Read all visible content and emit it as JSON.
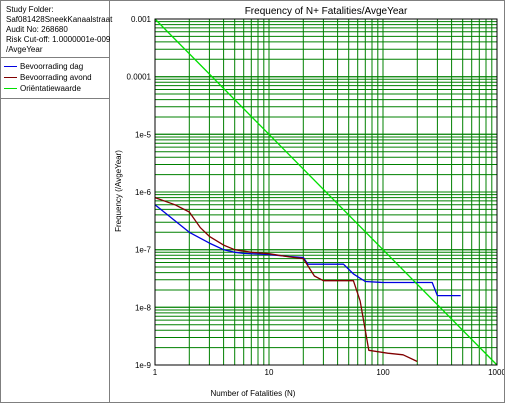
{
  "info": {
    "study_folder_label": "Study Folder:",
    "study_folder_value": "Saf081428SneekKanaalstraat",
    "audit_no": "Audit No: 268680",
    "risk_cutoff": "Risk Cut-off: 1.0000001e-009",
    "risk_cutoff_unit": "/AvgeYear"
  },
  "chart_data": {
    "type": "line",
    "title": "Frequency of N+ Fatalities/AvgeYear",
    "xlabel": "Number of Fatalities (N)",
    "ylabel": "Frequency (/AvgeYear)",
    "x_scale": "log",
    "y_scale": "log",
    "xlim": [
      1,
      1000
    ],
    "ylim": [
      1e-09,
      0.001
    ],
    "x_tick_labels": [
      "1",
      "10",
      "100",
      "1000"
    ],
    "y_tick_labels": [
      "0.001",
      "0.0001",
      "1e-5",
      "1e-6",
      "1e-7",
      "1e-8",
      "1e-9"
    ],
    "grid": true,
    "legend_position": "left-panel",
    "colors": {
      "plot_background": "#ffffff",
      "grid": "#008000",
      "bevoorrading_dag": "#0000e0",
      "bevoorrading_avond": "#800000",
      "orientatiewaarde": "#00e000"
    },
    "series": [
      {
        "name": "Bevoorrading dag",
        "color": "#0000e0",
        "x": [
          1,
          2,
          3,
          4,
          5,
          6,
          8,
          10,
          15,
          20,
          22,
          30,
          45,
          55,
          70,
          100,
          150,
          200,
          270,
          300,
          480
        ],
        "y": [
          6e-07,
          2e-07,
          1.3e-07,
          1e-07,
          9e-08,
          8.6e-08,
          8.4e-08,
          8.2e-08,
          7.6e-08,
          7.3e-08,
          5.6e-08,
          5.6e-08,
          5.6e-08,
          3.8e-08,
          2.8e-08,
          2.7e-08,
          2.7e-08,
          2.7e-08,
          2.7e-08,
          1.6e-08,
          1.6e-08
        ]
      },
      {
        "name": "Bevoorrading avond",
        "color": "#800000",
        "x": [
          1,
          1.5,
          2,
          2.5,
          3,
          4,
          5,
          7,
          10,
          15,
          20,
          25,
          30,
          40,
          55,
          63,
          75,
          110,
          150,
          200
        ],
        "y": [
          8e-07,
          6e-07,
          4.5e-07,
          2.4e-07,
          1.7e-07,
          1.2e-07,
          1e-07,
          9e-08,
          8.5e-08,
          7.5e-08,
          7e-08,
          3.5e-08,
          2.9e-08,
          2.9e-08,
          2.9e-08,
          1.3e-08,
          1.8e-09,
          1.6e-09,
          1.5e-09,
          1.15e-09
        ]
      },
      {
        "name": "Oriëntatiewaarde",
        "color": "#00e000",
        "x": [
          1,
          1000
        ],
        "y": [
          0.001,
          1e-09
        ]
      }
    ]
  }
}
